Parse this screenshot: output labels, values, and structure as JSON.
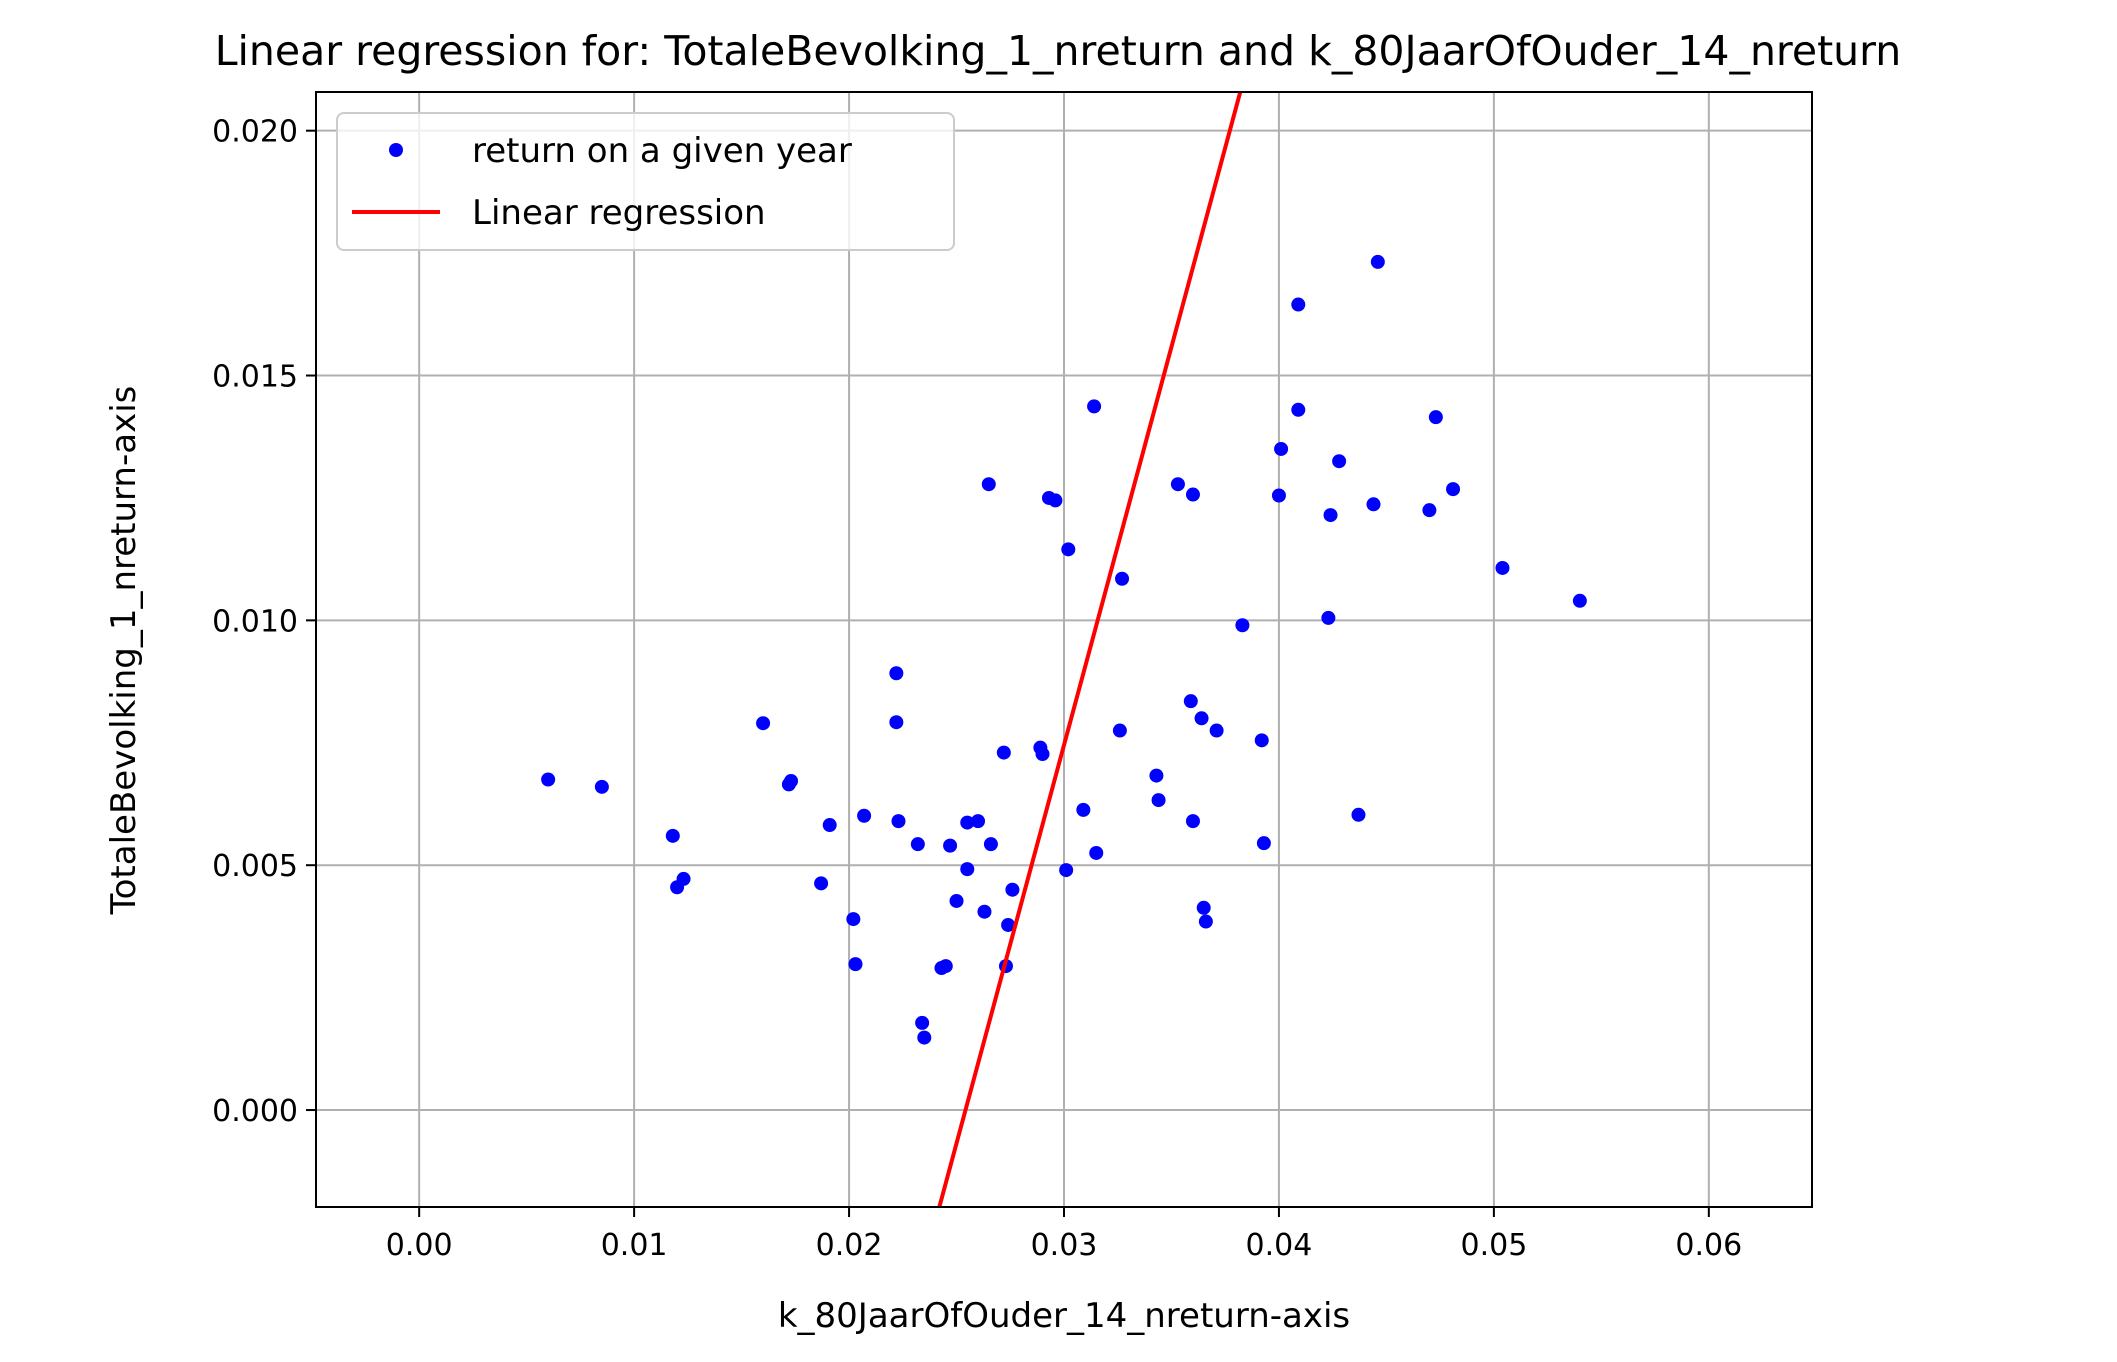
{
  "chart_data": {
    "type": "scatter",
    "title": "Linear regression for: TotaleBevolking_1_nreturn and k_80JaarOfOuder_14_nreturn",
    "xlabel": "k_80JaarOfOuder_14_nreturn-axis",
    "ylabel": "TotaleBevolking_1_nreturn-axis",
    "xlim": [
      -0.0048,
      0.0648
    ],
    "ylim": [
      -0.00198,
      0.02079
    ],
    "x_ticks": [
      0.0,
      0.01,
      0.02,
      0.03,
      0.04,
      0.05,
      0.06
    ],
    "x_tick_labels": [
      "0.00",
      "0.01",
      "0.02",
      "0.03",
      "0.04",
      "0.05",
      "0.06"
    ],
    "y_ticks": [
      0.0,
      0.005,
      0.01,
      0.015,
      0.02
    ],
    "y_tick_labels": [
      "0.000",
      "0.005",
      "0.010",
      "0.015",
      "0.020"
    ],
    "grid": true,
    "legend_position": "top-left",
    "colors": {
      "scatter": "#0000ff",
      "line": "#ff0000",
      "grid": "#b0b0b0",
      "axes": "#000000"
    },
    "series": [
      {
        "name": "return on a given year",
        "kind": "scatter",
        "points": [
          [
            0.006,
            0.00675
          ],
          [
            0.0085,
            0.0066
          ],
          [
            0.0118,
            0.0056
          ],
          [
            0.012,
            0.00455
          ],
          [
            0.0123,
            0.00472
          ],
          [
            0.016,
            0.0079
          ],
          [
            0.0172,
            0.00665
          ],
          [
            0.0173,
            0.00672
          ],
          [
            0.0187,
            0.00463
          ],
          [
            0.0191,
            0.00582
          ],
          [
            0.0202,
            0.0039
          ],
          [
            0.0203,
            0.00298
          ],
          [
            0.0207,
            0.00601
          ],
          [
            0.0222,
            0.00892
          ],
          [
            0.0222,
            0.00792
          ],
          [
            0.0223,
            0.0059
          ],
          [
            0.0232,
            0.00543
          ],
          [
            0.0234,
            0.00178
          ],
          [
            0.0235,
            0.00148
          ],
          [
            0.0243,
            0.0029
          ],
          [
            0.0245,
            0.00294
          ],
          [
            0.0247,
            0.0054
          ],
          [
            0.025,
            0.00427
          ],
          [
            0.0255,
            0.00587
          ],
          [
            0.0255,
            0.00492
          ],
          [
            0.026,
            0.0059
          ],
          [
            0.0263,
            0.00405
          ],
          [
            0.0265,
            0.01278
          ],
          [
            0.0266,
            0.00543
          ],
          [
            0.0272,
            0.0073
          ],
          [
            0.0273,
            0.00294
          ],
          [
            0.0274,
            0.00378
          ],
          [
            0.0276,
            0.0045
          ],
          [
            0.0289,
            0.0074
          ],
          [
            0.029,
            0.00727
          ],
          [
            0.0293,
            0.0125
          ],
          [
            0.0296,
            0.01245
          ],
          [
            0.0301,
            0.0049
          ],
          [
            0.0302,
            0.01145
          ],
          [
            0.0309,
            0.00613
          ],
          [
            0.0314,
            0.01437
          ],
          [
            0.0315,
            0.00525
          ],
          [
            0.0326,
            0.00775
          ],
          [
            0.0327,
            0.01085
          ],
          [
            0.0343,
            0.00683
          ],
          [
            0.0344,
            0.00633
          ],
          [
            0.0353,
            0.01278
          ],
          [
            0.0359,
            0.00835
          ],
          [
            0.036,
            0.01257
          ],
          [
            0.036,
            0.0059
          ],
          [
            0.0364,
            0.008
          ],
          [
            0.0365,
            0.00413
          ],
          [
            0.0366,
            0.00385
          ],
          [
            0.0371,
            0.00775
          ],
          [
            0.0383,
            0.0099
          ],
          [
            0.0392,
            0.00755
          ],
          [
            0.0393,
            0.00545
          ],
          [
            0.04,
            0.01255
          ],
          [
            0.0401,
            0.0135
          ],
          [
            0.0409,
            0.01645
          ],
          [
            0.0409,
            0.0143
          ],
          [
            0.0423,
            0.01005
          ],
          [
            0.0424,
            0.01215
          ],
          [
            0.0428,
            0.01325
          ],
          [
            0.0437,
            0.00603
          ],
          [
            0.0444,
            0.01237
          ],
          [
            0.0446,
            0.01732
          ],
          [
            0.047,
            0.01225
          ],
          [
            0.0473,
            0.01415
          ],
          [
            0.0481,
            0.01268
          ],
          [
            0.0504,
            0.01107
          ],
          [
            0.054,
            0.0104
          ]
        ]
      },
      {
        "name": "Linear regression",
        "kind": "line",
        "points": [
          [
            0.0242,
            -0.00198
          ],
          [
            0.0382,
            0.02079
          ]
        ]
      }
    ]
  }
}
